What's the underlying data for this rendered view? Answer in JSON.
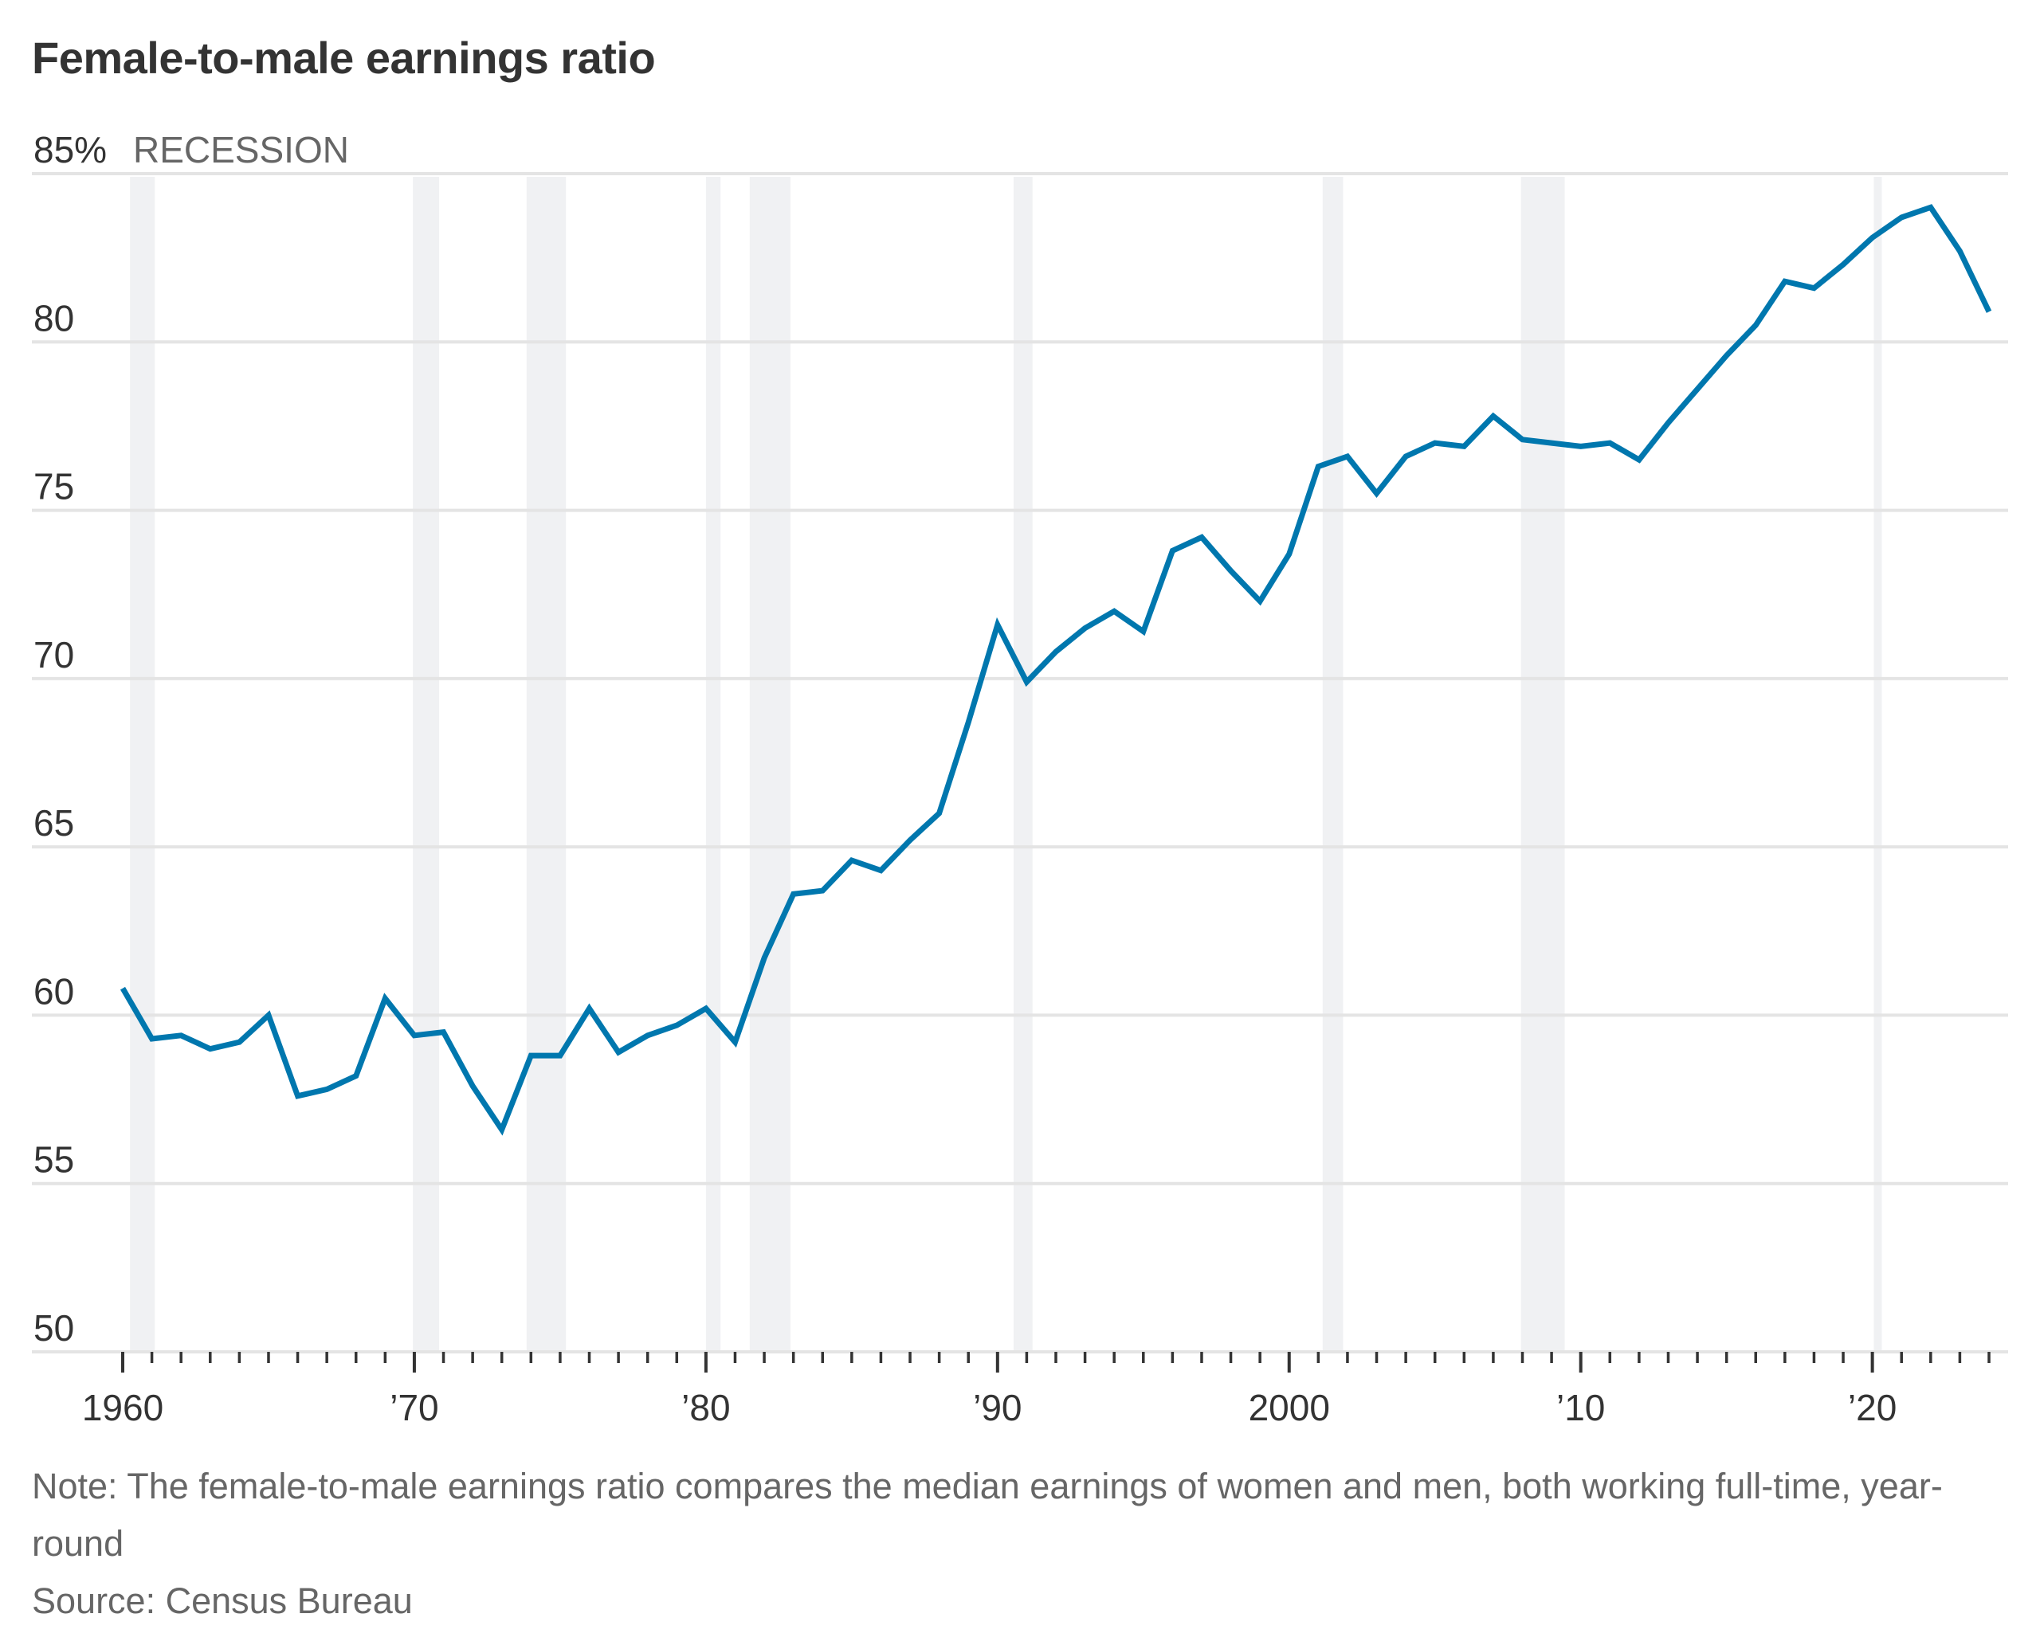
{
  "chart_data": {
    "type": "line",
    "title": "Female-to-male earnings ratio",
    "xlabel": "",
    "ylabel": "",
    "y_unit_label": "85%",
    "ylim": [
      50,
      85
    ],
    "xlim": [
      1960,
      2024
    ],
    "grid": "horizontal",
    "y_ticks": [
      {
        "value": 85,
        "label": "85%"
      },
      {
        "value": 80,
        "label": "80"
      },
      {
        "value": 75,
        "label": "75"
      },
      {
        "value": 70,
        "label": "70"
      },
      {
        "value": 65,
        "label": "65"
      },
      {
        "value": 60,
        "label": "60"
      },
      {
        "value": 55,
        "label": "55"
      },
      {
        "value": 50,
        "label": "50"
      }
    ],
    "x_ticks": [
      {
        "value": 1960,
        "label": "1960"
      },
      {
        "value": 1970,
        "label": "’70"
      },
      {
        "value": 1980,
        "label": "’80"
      },
      {
        "value": 1990,
        "label": "’90"
      },
      {
        "value": 2000,
        "label": "2000"
      },
      {
        "value": 2010,
        "label": "’10"
      },
      {
        "value": 2020,
        "label": "’20"
      }
    ],
    "minor_x_tick_step": 1,
    "legend": {
      "label": "RECESSION",
      "placement": "top-left",
      "color": "#f0f1f3"
    },
    "recessions": [
      [
        1960.25,
        1961.1
      ],
      [
        1969.95,
        1970.85
      ],
      [
        1973.85,
        1975.2
      ],
      [
        1980.0,
        1980.5
      ],
      [
        1981.5,
        1982.9
      ],
      [
        1990.55,
        1991.2
      ],
      [
        2001.15,
        2001.85
      ],
      [
        2007.95,
        2009.45
      ],
      [
        2020.05,
        2020.3
      ]
    ],
    "series": [
      {
        "name": "Female-to-male earnings ratio",
        "color": "#0077ae",
        "x": [
          1960,
          1961,
          1962,
          1963,
          1964,
          1965,
          1966,
          1967,
          1968,
          1969,
          1970,
          1971,
          1972,
          1973,
          1974,
          1975,
          1976,
          1977,
          1978,
          1979,
          1980,
          1981,
          1982,
          1983,
          1984,
          1985,
          1986,
          1987,
          1988,
          1989,
          1990,
          1991,
          1992,
          1993,
          1994,
          1995,
          1996,
          1997,
          1998,
          1999,
          2000,
          2001,
          2002,
          2003,
          2004,
          2005,
          2006,
          2007,
          2008,
          2009,
          2010,
          2011,
          2012,
          2013,
          2014,
          2015,
          2016,
          2017,
          2018,
          2019,
          2020,
          2021,
          2022,
          2023,
          2024
        ],
        "values": [
          60.8,
          59.3,
          59.4,
          59.0,
          59.2,
          60.0,
          57.6,
          57.8,
          58.2,
          60.5,
          59.4,
          59.5,
          57.9,
          56.6,
          58.8,
          58.8,
          60.2,
          58.9,
          59.4,
          59.7,
          60.2,
          59.2,
          61.7,
          63.6,
          63.7,
          64.6,
          64.3,
          65.2,
          66.0,
          68.7,
          71.6,
          69.9,
          70.8,
          71.5,
          72.0,
          71.4,
          73.8,
          74.2,
          73.2,
          72.3,
          73.7,
          76.3,
          76.6,
          75.5,
          76.6,
          77.0,
          76.9,
          77.8,
          77.1,
          77.0,
          76.9,
          77.0,
          76.5,
          77.6,
          78.6,
          79.6,
          80.5,
          81.8,
          81.6,
          82.3,
          83.1,
          83.7,
          84.0,
          82.7,
          80.9
        ]
      }
    ]
  },
  "footer": {
    "note": "Note: The female-to-male earnings ratio compares the median earnings of women and men, both working full-time, year-round",
    "source": "Source: Census Bureau"
  }
}
